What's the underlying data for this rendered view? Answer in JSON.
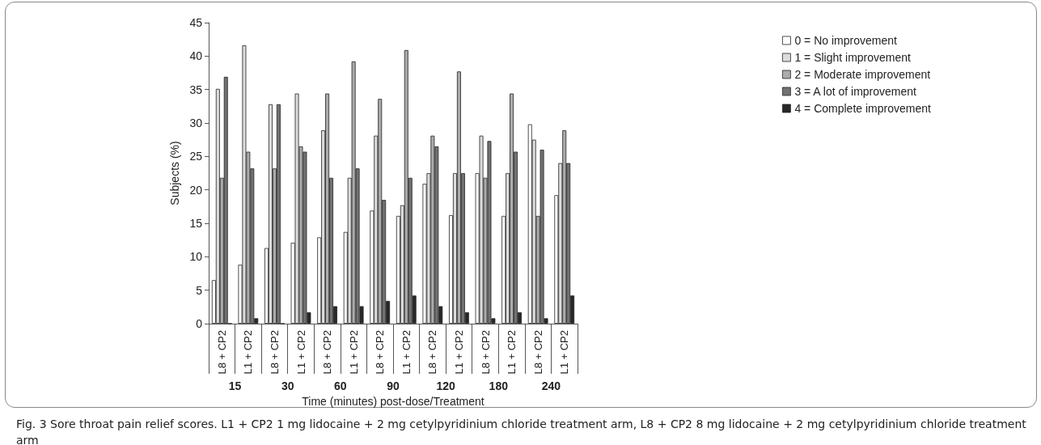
{
  "chart_data": {
    "type": "bar",
    "categories": [
      "L8 + CP2",
      "L1 + CP2",
      "L8 + CP2",
      "L1 + CP2",
      "L8 + CP2",
      "L1 + CP2",
      "L8 + CP2",
      "L1 + CP2",
      "L8 + CP2",
      "L1 + CP2",
      "L8 + CP2",
      "L1 + CP2",
      "L8 + CP2",
      "L1 + CP2"
    ],
    "series": [
      {
        "name": "0 = No improvement",
        "color": "#ffffff",
        "values": [
          6.5,
          8.8,
          11.3,
          12.1,
          12.9,
          13.7,
          16.9,
          16.1,
          20.9,
          16.2,
          22.5,
          16.1,
          29.8,
          19.2
        ]
      },
      {
        "name": "1 = Slight improvement",
        "color": "#dcdcdc",
        "values": [
          35.1,
          41.6,
          32.8,
          34.4,
          28.9,
          21.8,
          28.1,
          17.7,
          22.5,
          22.5,
          28.1,
          22.5,
          27.5,
          24.0
        ]
      },
      {
        "name": "2 = Moderate improvement",
        "color": "#ababab",
        "values": [
          21.8,
          25.7,
          23.2,
          26.5,
          34.4,
          39.2,
          33.6,
          40.9,
          28.1,
          37.7,
          21.8,
          34.4,
          16.1,
          28.9
        ]
      },
      {
        "name": "3 = A lot of improvement",
        "color": "#727272",
        "values": [
          36.9,
          23.2,
          32.8,
          25.7,
          21.8,
          23.2,
          18.5,
          21.8,
          26.5,
          22.5,
          27.3,
          25.7,
          26.0,
          24.0
        ]
      },
      {
        "name": "4 = Complete improvement",
        "color": "#282828",
        "values": [
          0,
          0.8,
          0,
          1.7,
          2.6,
          2.6,
          3.4,
          4.2,
          2.6,
          1.7,
          0.8,
          1.7,
          0.8,
          4.2
        ]
      }
    ],
    "ylabel": "Subjects (%)",
    "xlabel": "Time (minutes) post-dose/Treatment",
    "ylim": [
      0,
      45
    ],
    "yticks": [
      0,
      5,
      10,
      15,
      20,
      25,
      30,
      35,
      40,
      45
    ],
    "grid": false,
    "legend": "right",
    "annotations": [
      "15",
      "30",
      "60",
      "90",
      "120",
      "180",
      "240",
      "Fig. 3 Sore throat pain relief scores. L1 + CP2 1 mg lidocaine + 2 mg cetylpyridinium chloride treatment arm, L8 + CP2 8 mg lidocaine + 2 mg cetylpyridinium chloride treatment arm"
    ]
  }
}
